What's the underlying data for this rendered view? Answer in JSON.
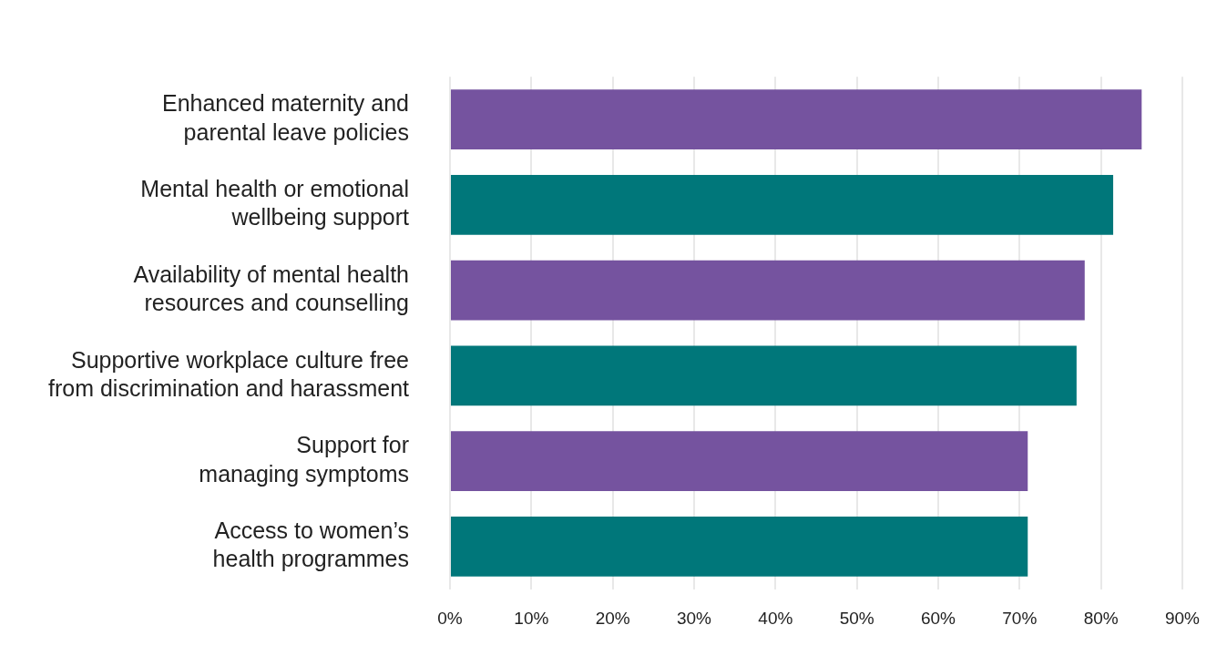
{
  "chart_data": {
    "type": "bar",
    "orientation": "horizontal",
    "categories": [
      "Enhanced maternity and\nparental leave policies",
      "Mental health or emotional\nwellbeing support",
      "Availability of mental health\nresources and counselling",
      "Supportive workplace culture free\nfrom discrimination and harassment",
      "Support for\nmanaging symptoms",
      "Access to women’s\nhealth programmes"
    ],
    "values": [
      85,
      81.5,
      78,
      77,
      71,
      71
    ],
    "colors": [
      "#75539f",
      "#00777a",
      "#75539f",
      "#00777a",
      "#75539f",
      "#00777a"
    ],
    "xlim": [
      0,
      90
    ],
    "xticks": [
      {
        "value": 0,
        "label": "0%"
      },
      {
        "value": 10,
        "label": "10%"
      },
      {
        "value": 20,
        "label": "20%"
      },
      {
        "value": 30,
        "label": "30%"
      },
      {
        "value": 40,
        "label": "40%"
      },
      {
        "value": 50,
        "label": "50%"
      },
      {
        "value": 60,
        "label": "60%"
      },
      {
        "value": 70,
        "label": "70%"
      },
      {
        "value": 80,
        "label": "80%"
      },
      {
        "value": 90,
        "label": "90%"
      }
    ],
    "grid": "x"
  }
}
